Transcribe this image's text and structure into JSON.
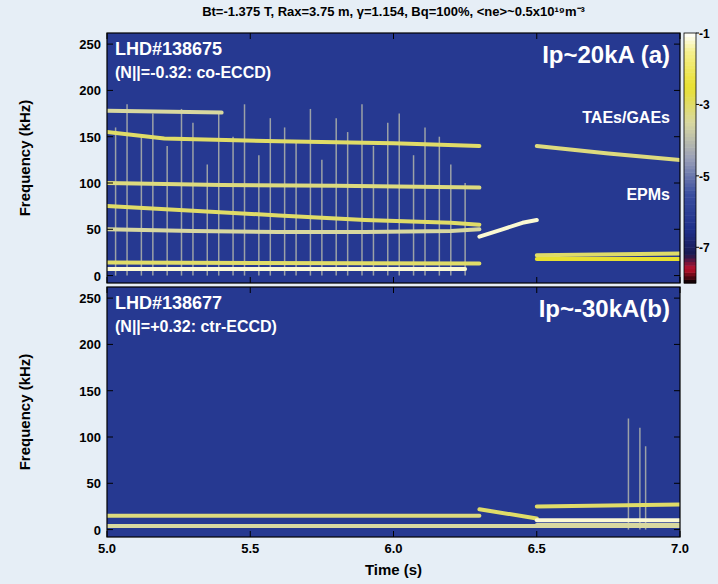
{
  "chart_data": [
    {
      "type": "spectrogram",
      "title": "Bt=-1.375 T, Rax=3.75 m, γ=1.154, Bq=100%, <ne>~0.5x10¹⁹m⁻³",
      "ylabel": "Frequency (kHz)",
      "xlim": [
        5.0,
        7.0
      ],
      "xticks": [
        {
          "value": 5.0,
          "label": "5.0"
        },
        5.5,
        {
          "value": 6.0,
          "label": "6.0"
        },
        6.5,
        {
          "value": 7.0,
          "label": "7.0"
        }
      ],
      "ylim": [
        -8,
        262
      ],
      "yticks": [
        0,
        50,
        100,
        150,
        200,
        250
      ],
      "tick_labels": "y",
      "colorbar": {
        "range": [
          -8,
          -1
        ],
        "ticks": [
          -1,
          -3,
          -5,
          -7
        ]
      },
      "annotations": [
        {
          "text": "LHD#138675"
        },
        {
          "text": "(N||=-0.32: co-ECCD)"
        },
        {
          "text": "Ip~20kA (a)"
        },
        {
          "text": "TAEs/GAEs"
        },
        {
          "text": "EPMs"
        }
      ],
      "series": [
        {
          "x": [
            5.0,
            6.25
          ],
          "values": [
            7,
            7
          ],
          "level": -1.2
        },
        {
          "x": [
            5.0,
            6.3
          ],
          "values": [
            14,
            13
          ],
          "level": -3
        },
        {
          "x": [
            5.0,
            5.3,
            5.6,
            5.9,
            6.2,
            6.3
          ],
          "values": [
            75,
            70,
            65,
            60,
            57,
            55
          ],
          "level": -3
        },
        {
          "x": [
            5.0,
            5.3,
            5.6,
            5.9,
            6.2,
            6.3
          ],
          "values": [
            50,
            48,
            47,
            47,
            48,
            50
          ],
          "level": -3.5
        },
        {
          "x": [
            5.0,
            5.4,
            5.8,
            6.3
          ],
          "values": [
            100,
            98,
            97,
            95
          ],
          "level": -3.2
        },
        {
          "x": [
            5.0,
            5.2,
            5.6,
            6.0,
            6.3
          ],
          "values": [
            155,
            148,
            145,
            143,
            140
          ],
          "level": -3
        },
        {
          "x": [
            5.0,
            5.4
          ],
          "values": [
            178,
            176
          ],
          "level": -3.5
        },
        {
          "x": [
            6.3,
            6.38,
            6.45,
            6.5
          ],
          "values": [
            42,
            50,
            57,
            60
          ],
          "level": -1.2
        },
        {
          "x": [
            6.5,
            6.75,
            7.0
          ],
          "values": [
            140,
            132,
            125
          ],
          "level": -3.2
        },
        {
          "x": [
            6.5,
            7.0
          ],
          "values": [
            22,
            24
          ],
          "level": -3
        },
        {
          "x": [
            6.5,
            7.0
          ],
          "values": [
            18,
            18
          ],
          "level": -2.5
        }
      ],
      "bursts": {
        "x": [
          5.03,
          5.07,
          5.12,
          5.16,
          5.21,
          5.26,
          5.3,
          5.35,
          5.39,
          5.44,
          5.48,
          5.53,
          5.57,
          5.62,
          5.66,
          5.71,
          5.75,
          5.8,
          5.84,
          5.89,
          5.93,
          5.98,
          6.02,
          6.07,
          6.11,
          6.16,
          6.2,
          6.25
        ],
        "values": [
          160,
          185,
          150,
          175,
          140,
          180,
          165,
          120,
          175,
          150,
          185,
          130,
          170,
          160,
          145,
          180,
          125,
          170,
          155,
          185,
          140,
          165,
          175,
          130,
          160,
          150,
          120,
          100
        ],
        "level": -4
      }
    },
    {
      "type": "spectrogram",
      "xlabel": "Time (s)",
      "ylabel": "Frequency (kHz)",
      "xlim": [
        5.0,
        7.0
      ],
      "xticks": [
        {
          "value": 5.0,
          "label": "5.0"
        },
        5.5,
        {
          "value": 6.0,
          "label": "6.0"
        },
        6.5,
        {
          "value": 7.0,
          "label": "7.0"
        }
      ],
      "ylim": [
        -8,
        262
      ],
      "yticks": [
        0,
        50,
        100,
        150,
        200,
        250
      ],
      "annotations": [
        {
          "text": "LHD#138677"
        },
        {
          "text": "(N||=+0.32: ctr-ECCD)"
        },
        {
          "text": "Ip~-30kA(b)"
        }
      ],
      "series": [
        {
          "x": [
            5.0,
            7.0
          ],
          "values": [
            4,
            4
          ],
          "level": -3.5
        },
        {
          "x": [
            5.0,
            6.3
          ],
          "values": [
            15,
            15
          ],
          "level": -3.2
        },
        {
          "x": [
            6.3,
            6.5
          ],
          "values": [
            22,
            12
          ],
          "level": -3
        },
        {
          "x": [
            6.5,
            7.0
          ],
          "values": [
            10,
            10
          ],
          "level": -1.2
        },
        {
          "x": [
            6.5,
            7.0
          ],
          "values": [
            25,
            27
          ],
          "level": -3
        },
        {
          "x": [
            6.5,
            7.0
          ],
          "values": [
            5,
            5
          ],
          "level": -3.5
        }
      ],
      "bursts": {
        "x": [
          6.82,
          6.86,
          6.88
        ],
        "values": [
          120,
          110,
          90
        ],
        "level": -4
      }
    }
  ]
}
